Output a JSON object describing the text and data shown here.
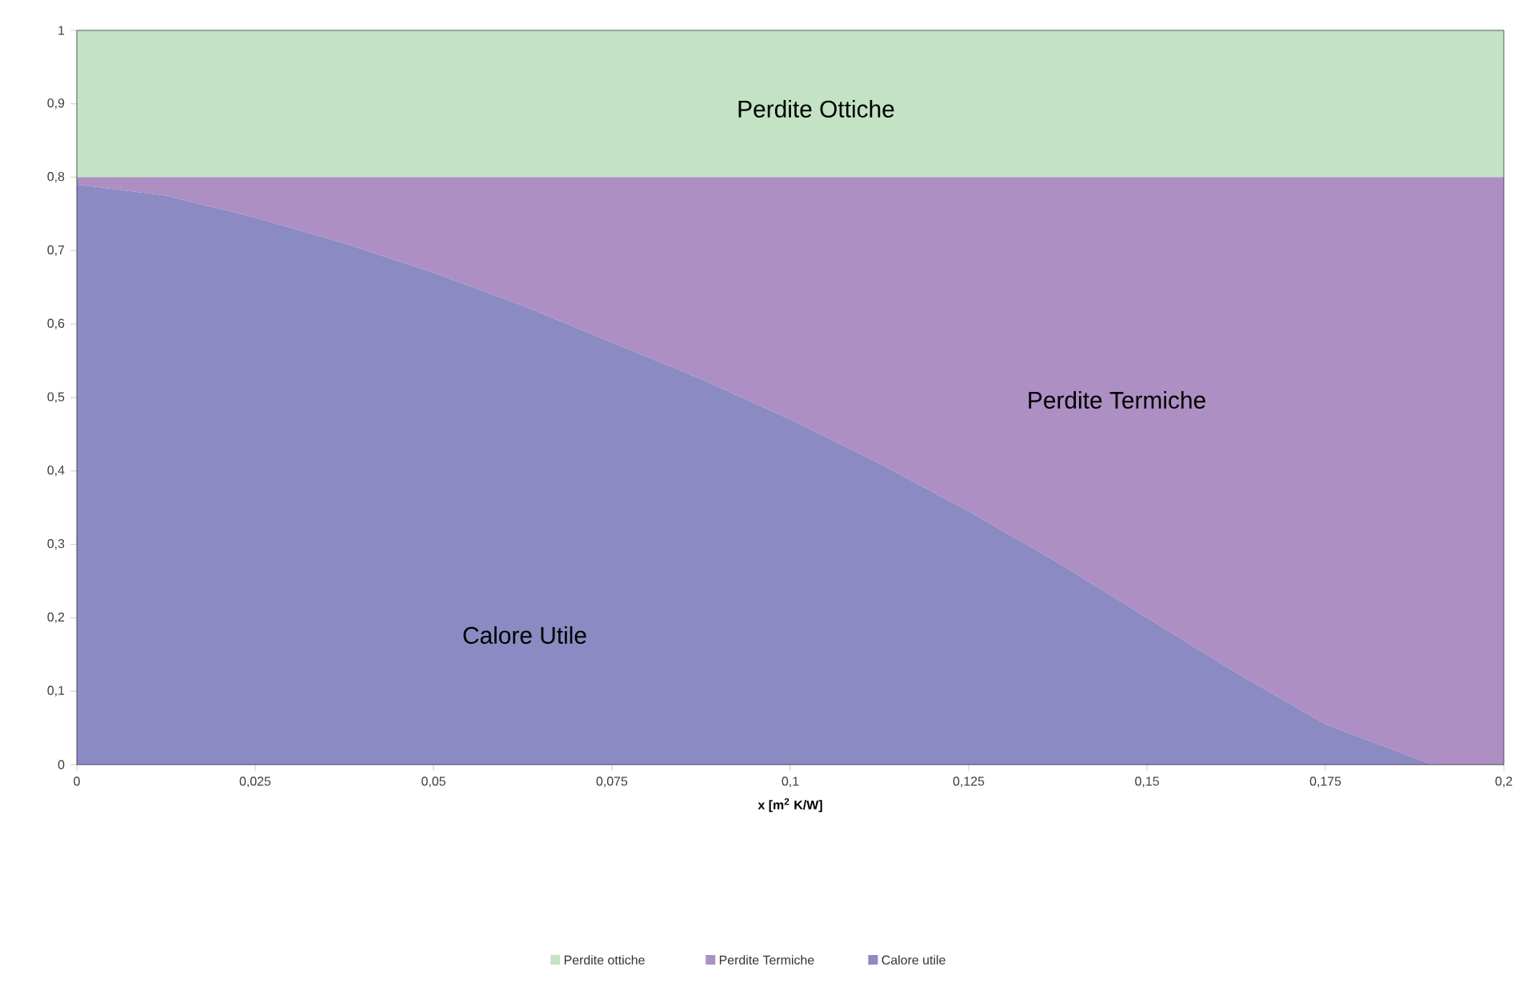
{
  "chart_data": {
    "type": "area",
    "stacked": true,
    "xlabel": "x [m$^{2}$ K/W]",
    "x": [
      0,
      0.0125,
      0.025,
      0.0375,
      0.05,
      0.0625,
      0.075,
      0.0875,
      0.1,
      0.1125,
      0.125,
      0.1375,
      0.15,
      0.1625,
      0.175,
      0.19,
      0.2
    ],
    "series": [
      {
        "name": "Calore utile",
        "color": "#8b8ac2",
        "values": [
          0.79,
          0.775,
          0.745,
          0.71,
          0.67,
          0.625,
          0.575,
          0.525,
          0.47,
          0.41,
          0.345,
          0.275,
          0.2,
          0.125,
          0.055,
          0,
          0
        ]
      },
      {
        "name": "Perdite Termiche",
        "color": "#ad8fc4",
        "values": [
          0.01,
          0.025,
          0.055,
          0.09,
          0.13,
          0.175,
          0.225,
          0.275,
          0.33,
          0.39,
          0.455,
          0.525,
          0.6,
          0.675,
          0.745,
          0.8,
          0.8
        ]
      },
      {
        "name": "Perdite ottiche",
        "color": "#c4e2c4",
        "values": [
          0.2,
          0.2,
          0.2,
          0.2,
          0.2,
          0.2,
          0.2,
          0.2,
          0.2,
          0.2,
          0.2,
          0.2,
          0.2,
          0.2,
          0.2,
          0.2,
          0.2
        ]
      }
    ],
    "xlim": [
      0,
      0.2
    ],
    "ylim": [
      0,
      1
    ],
    "xticks": [
      0,
      {
        "value": 0.025,
        "label": "0,025"
      },
      {
        "value": 0.05,
        "label": "0,05"
      },
      {
        "value": 0.075,
        "label": "0,075"
      },
      {
        "value": 0.1,
        "label": "0,1"
      },
      {
        "value": 0.125,
        "label": "0,125"
      },
      {
        "value": 0.15,
        "label": "0,15"
      },
      {
        "value": 0.175,
        "label": "0,175"
      },
      {
        "value": 0.2,
        "label": "0,2"
      }
    ],
    "yticks": [
      0,
      {
        "value": 0.1,
        "label": "0,1"
      },
      {
        "value": 0.2,
        "label": "0,2"
      },
      {
        "value": 0.3,
        "label": "0,3"
      },
      {
        "value": 0.4,
        "label": "0,4"
      },
      {
        "value": 0.5,
        "label": "0,5"
      },
      {
        "value": 0.6,
        "label": "0,6"
      },
      {
        "value": 0.7,
        "label": "0,7"
      },
      {
        "value": 0.8,
        "label": "0,8"
      },
      {
        "value": 0.9,
        "label": "0,9"
      },
      1
    ],
    "annotations": [
      "Perdite Ottiche",
      "Perdite Termiche",
      "Calore Utile"
    ],
    "legend": "bottom",
    "grid": false
  }
}
